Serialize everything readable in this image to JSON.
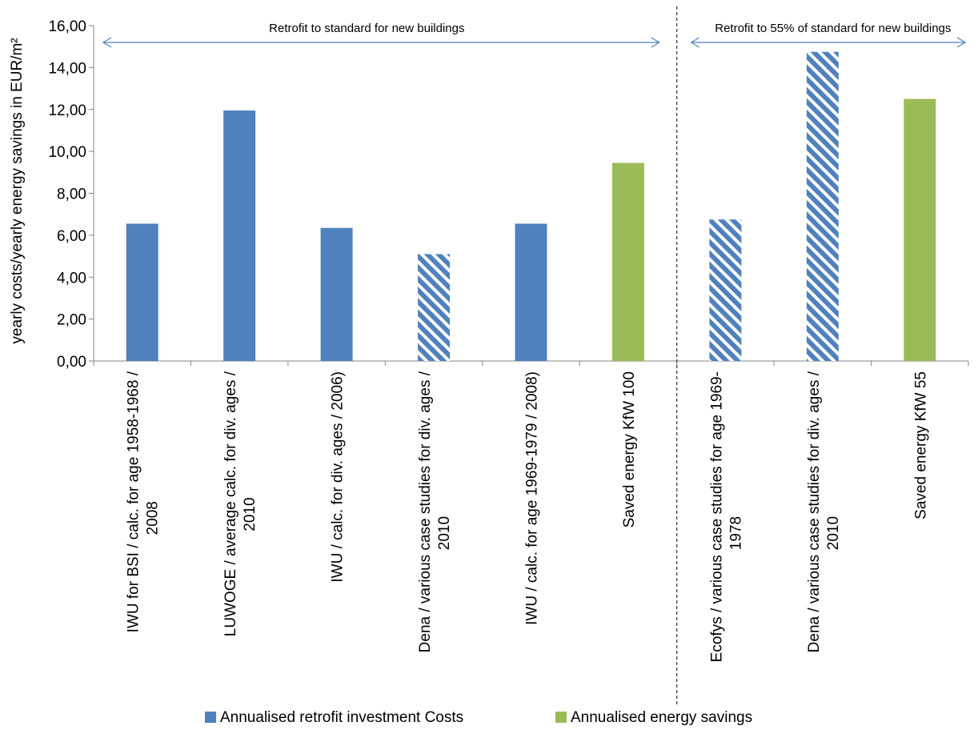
{
  "chart_data": {
    "type": "bar",
    "ylabel": "yearly costs/yearly energy savings in EUR/m²",
    "ylim": [
      0,
      16
    ],
    "ytick_step": 2,
    "ytick_labels": [
      "0,00",
      "2,00",
      "4,00",
      "6,00",
      "8,00",
      "10,00",
      "12,00",
      "14,00",
      "16,00"
    ],
    "grid": false,
    "legend_position": "bottom",
    "colors": {
      "investment": "#4f81bd",
      "savings": "#9bbb59"
    },
    "categories": [
      {
        "lines": [
          "IWU for BSI / calc. for age 1958-1968 /",
          "2008"
        ],
        "value": 6.55,
        "series": "investment",
        "hatched": false
      },
      {
        "lines": [
          "LUWOGE / average calc. for div. ages /",
          "2010"
        ],
        "value": 11.95,
        "series": "investment",
        "hatched": false
      },
      {
        "lines": [
          "IWU / calc. for div. ages / 2006)"
        ],
        "value": 6.35,
        "series": "investment",
        "hatched": false
      },
      {
        "lines": [
          "Dena / various case studies for div. ages /",
          "2010"
        ],
        "value": 5.1,
        "series": "investment",
        "hatched": true
      },
      {
        "lines": [
          "IWU / calc. for age 1969-1979 / 2008)"
        ],
        "value": 6.55,
        "series": "investment",
        "hatched": false
      },
      {
        "lines": [
          "Saved energy KfW 100"
        ],
        "value": 9.45,
        "series": "savings",
        "hatched": false
      },
      {
        "lines": [
          "Ecofys / various case studies for age 1969-",
          "1978"
        ],
        "value": 6.75,
        "series": "investment",
        "hatched": true
      },
      {
        "lines": [
          "Dena / various case studies for div. ages /",
          "2010"
        ],
        "value": 14.75,
        "series": "investment",
        "hatched": true
      },
      {
        "lines": [
          "Saved energy KfW 55"
        ],
        "value": 12.5,
        "series": "savings",
        "hatched": false
      }
    ],
    "series": [
      {
        "name": "Annualised retrofit investment Costs",
        "key": "investment"
      },
      {
        "name": "Annualised energy savings",
        "key": "savings"
      }
    ],
    "annotations": [
      {
        "text": "Retrofit to standard for  new buildings",
        "from_category": 0,
        "to_category": 5
      },
      {
        "text": "Retrofit to 55% of standard for new buildings",
        "from_category": 6,
        "to_category": 8
      }
    ],
    "divider_after_category": 5
  }
}
